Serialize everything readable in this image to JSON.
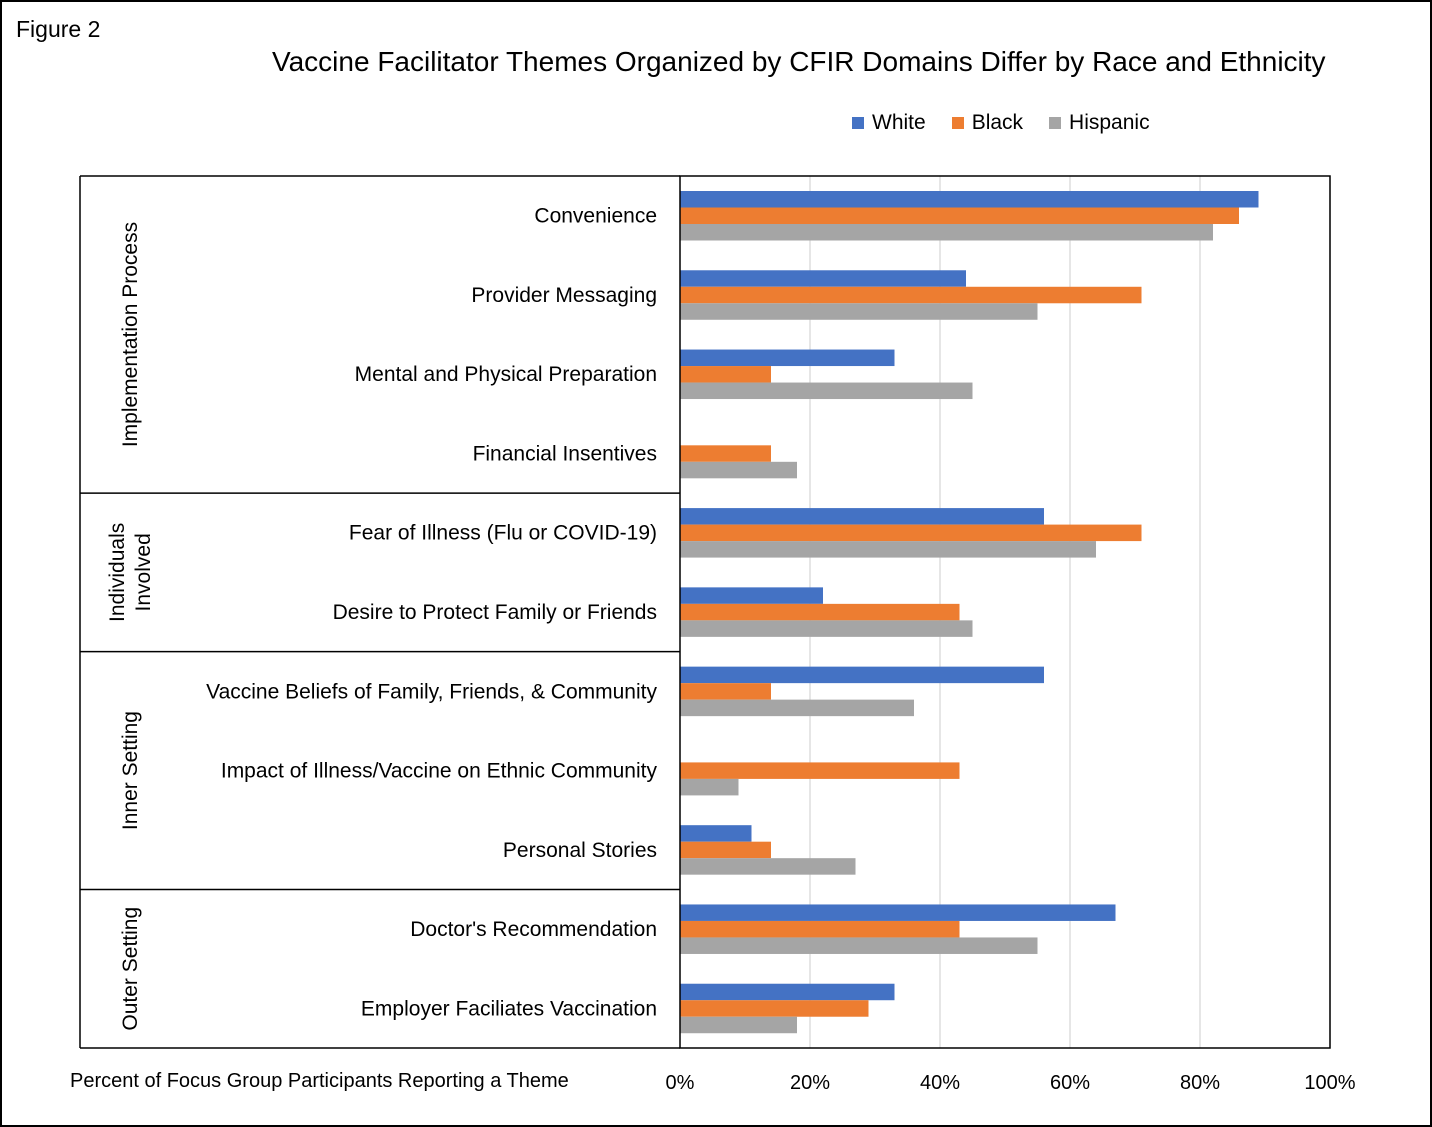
{
  "figure_label": "Figure 2",
  "chart_data": {
    "type": "bar",
    "orientation": "horizontal",
    "title": "Vaccine Facilitator Themes Organized by CFIR Domains Differ by Race and Ethnicity",
    "xlabel": "Percent of Focus Group Participants Reporting a Theme",
    "ylabel": "",
    "xlim": [
      0,
      100
    ],
    "x_ticks": [
      "0%",
      "20%",
      "40%",
      "60%",
      "80%",
      "100%"
    ],
    "grid": "vertical",
    "legend_position": "top",
    "categories": [
      "Convenience",
      "Provider Messaging",
      "Mental and Physical Preparation",
      "Financial Insentives",
      "Fear of Illness (Flu or COVID-19)",
      "Desire to Protect Family or Friends",
      "Vaccine Beliefs of Family, Friends, & Community",
      "Impact of Illness/Vaccine on Ethnic Community",
      "Personal Stories",
      "Doctor's Recommendation",
      "Employer Faciliates Vaccination"
    ],
    "groups": [
      {
        "name": "Implementation Process",
        "lines": [
          "Implementation Process"
        ],
        "start": 0,
        "end": 3
      },
      {
        "name": "Individuals Involved",
        "lines": [
          "Individuals",
          "Involved"
        ],
        "start": 4,
        "end": 5
      },
      {
        "name": "Inner Setting",
        "lines": [
          "Inner Setting"
        ],
        "start": 6,
        "end": 8
      },
      {
        "name": "Outer Setting",
        "lines": [
          "Outer Setting"
        ],
        "start": 9,
        "end": 10
      }
    ],
    "series": [
      {
        "name": "White",
        "color": "#4472c4",
        "values": [
          89,
          44,
          33,
          0,
          56,
          22,
          56,
          0,
          11,
          67,
          33
        ]
      },
      {
        "name": "Black",
        "color": "#ed7d31",
        "values": [
          86,
          71,
          14,
          14,
          71,
          43,
          14,
          43,
          14,
          43,
          29
        ]
      },
      {
        "name": "Hispanic",
        "color": "#a5a5a5",
        "values": [
          82,
          55,
          45,
          18,
          64,
          45,
          36,
          9,
          27,
          55,
          18
        ]
      }
    ]
  }
}
